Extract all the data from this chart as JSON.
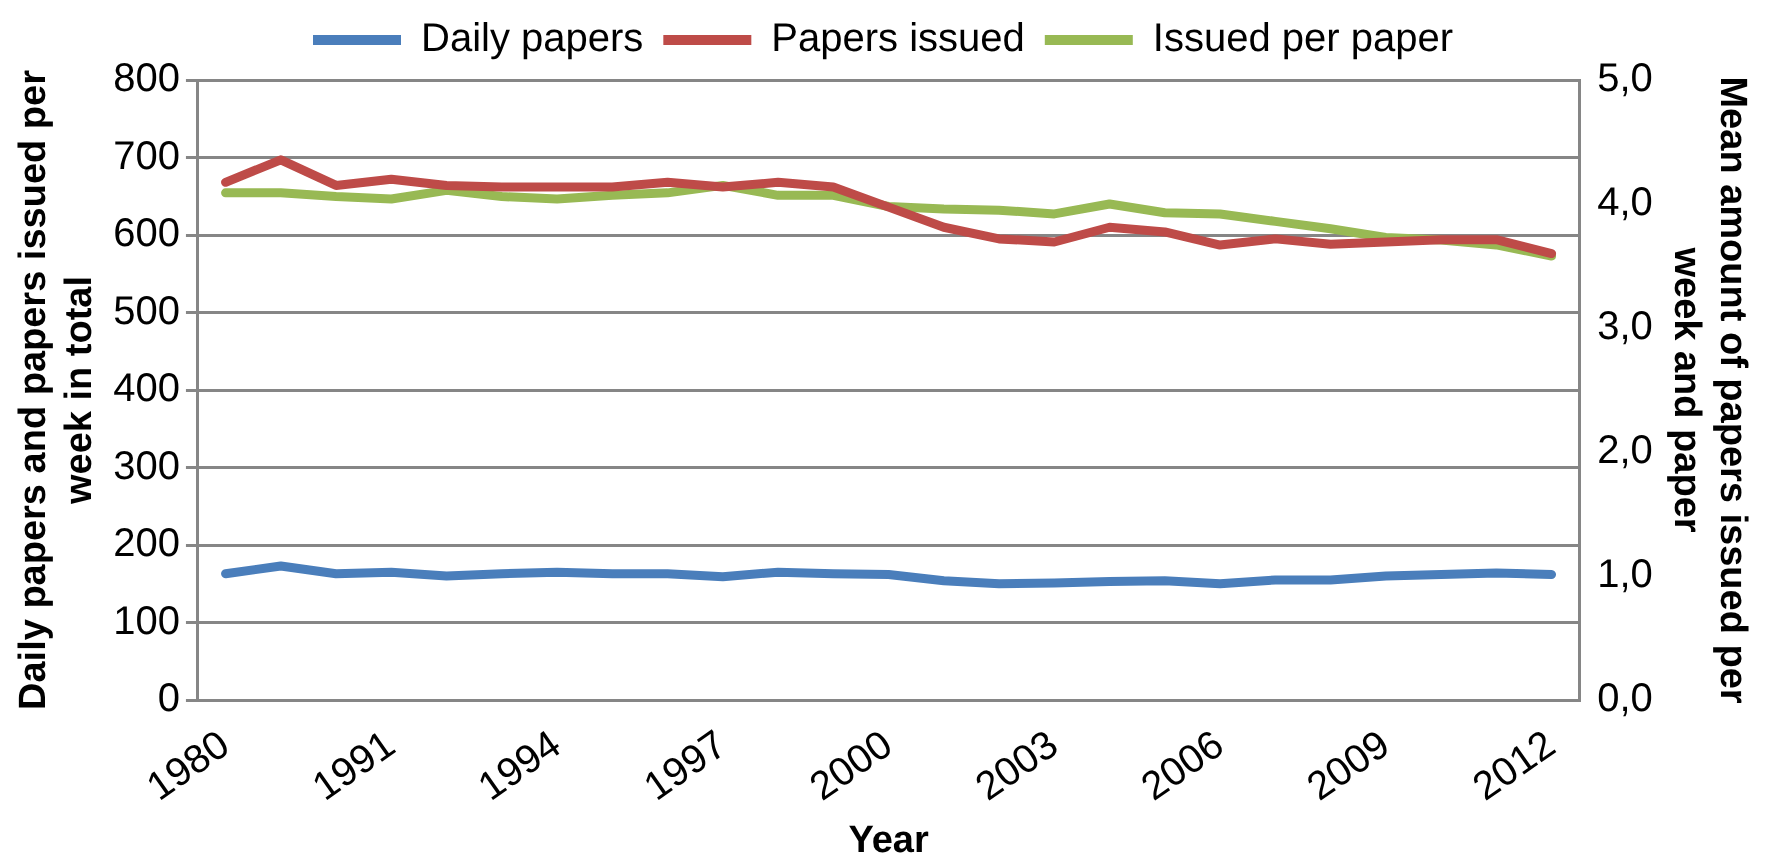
{
  "chart_data": {
    "type": "line",
    "xlabel": "Year",
    "ylabel": "Daily papers and papers issued per week in total",
    "y2label": "Mean amount of papers issued per week and paper",
    "categories": [
      "1980",
      null,
      null,
      "1991",
      null,
      null,
      "1994",
      null,
      null,
      "1997",
      null,
      null,
      "2000",
      null,
      null,
      "2003",
      null,
      null,
      "2006",
      null,
      null,
      "2009",
      null,
      null,
      "2012"
    ],
    "series": [
      {
        "name": "Daily papers",
        "color": "#4a7ebb",
        "values": [
          163,
          173,
          163,
          165,
          160,
          163,
          165,
          163,
          163,
          159,
          165,
          163,
          162,
          154,
          150,
          151,
          153,
          154,
          150,
          155,
          155,
          160,
          162,
          164,
          162
        ]
      },
      {
        "name": "Papers issued",
        "color": "#be4b48",
        "values": [
          668,
          697,
          664,
          672,
          664,
          662,
          662,
          662,
          668,
          662,
          668,
          662,
          636,
          610,
          595,
          591,
          610,
          604,
          587,
          595,
          588,
          591,
          594,
          594,
          576
        ]
      },
      {
        "name": "Issued per paper",
        "color": "#98b954",
        "axis": "y2",
        "values": [
          4.09,
          4.09,
          4.06,
          4.04,
          4.11,
          4.06,
          4.04,
          4.07,
          4.09,
          4.15,
          4.07,
          4.07,
          3.98,
          3.96,
          3.95,
          3.92,
          4.0,
          3.93,
          3.92,
          3.86,
          3.8,
          3.73,
          3.71,
          3.67,
          3.58
        ]
      }
    ],
    "ylim": [
      0,
      800
    ],
    "yticks": [
      0,
      100,
      200,
      300,
      400,
      500,
      600,
      700,
      800
    ],
    "y2lim": [
      0,
      5
    ],
    "y2ticks": [
      {
        "value": 0,
        "label": "0,0"
      },
      {
        "value": 1,
        "label": "1,0"
      },
      {
        "value": 2,
        "label": "2,0"
      },
      {
        "value": 3,
        "label": "3,0"
      },
      {
        "value": 4,
        "label": "4,0"
      },
      {
        "value": 5,
        "label": "5,0"
      }
    ],
    "grid": "y",
    "legend": "top",
    "marker": "none",
    "line_style": "solid"
  }
}
